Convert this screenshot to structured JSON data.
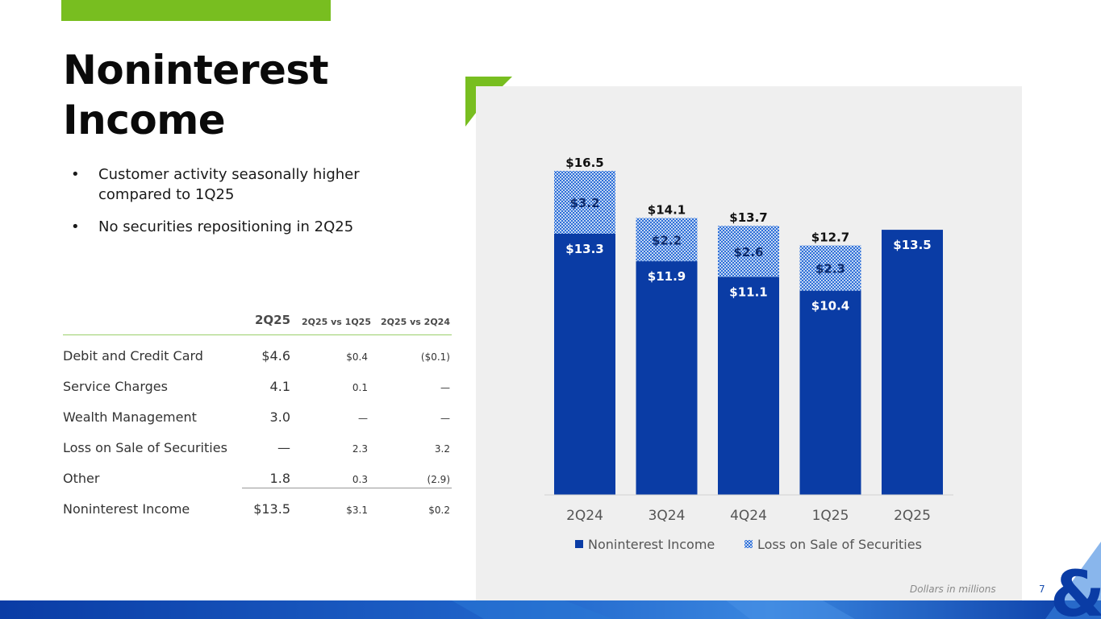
{
  "page": {
    "title": "Noninterest Income",
    "bullets": [
      "Customer activity seasonally higher compared to 1Q25",
      "No securities repositioning in 2Q25"
    ],
    "bullet_glyph": "•",
    "footnote": "Dollars in millions",
    "page_number": "7",
    "colors": {
      "accent_green": "#78be20",
      "navy": "#0a3ca5",
      "bar_blue": "#0a3ca5"
    },
    "logo_icon": "ampersand-logo-icon"
  },
  "table": {
    "headers": [
      "2Q25",
      "2Q25 vs 1Q25",
      "2Q25 vs 2Q24"
    ],
    "rows": [
      {
        "label": "Debit and Credit Card",
        "q": "$4.6",
        "v1": "$0.4",
        "v2": "($0.1)"
      },
      {
        "label": "Service Charges",
        "q": "4.1",
        "v1": "0.1",
        "v2": "—"
      },
      {
        "label": "Wealth Management",
        "q": "3.0",
        "v1": "—",
        "v2": "—"
      },
      {
        "label": "Loss on Sale of Securities",
        "q": "—",
        "v1": "2.3",
        "v2": "3.2"
      },
      {
        "label": "Other",
        "q": "1.8",
        "v1": "0.3",
        "v2": "(2.9)"
      },
      {
        "label": "Noninterest Income",
        "q": "$13.5",
        "v1": "$3.1",
        "v2": "$0.2"
      }
    ]
  },
  "chart_data": {
    "type": "bar",
    "stacked": true,
    "categories": [
      "2Q24",
      "3Q24",
      "4Q24",
      "1Q25",
      "2Q25"
    ],
    "series": [
      {
        "name": "Noninterest Income",
        "values": [
          13.3,
          11.9,
          11.1,
          10.4,
          13.5
        ],
        "labels": [
          "$13.3",
          "$11.9",
          "$11.1",
          "$10.4",
          "$13.5"
        ],
        "color": "#0a3ca5",
        "pattern": "solid"
      },
      {
        "name": "Loss on Sale of Securities",
        "values": [
          3.2,
          2.2,
          2.6,
          2.3,
          0
        ],
        "labels": [
          "$3.2",
          "$2.2",
          "$2.6",
          "$2.3",
          ""
        ],
        "color": "#2e6fd8",
        "pattern": "checker"
      }
    ],
    "totals": [
      16.5,
      14.1,
      13.7,
      12.7,
      null
    ],
    "total_labels": [
      "$16.5",
      "$14.1",
      "$13.7",
      "$12.7",
      ""
    ],
    "ylim": [
      0,
      16.5
    ],
    "legend": "bottom",
    "title": "",
    "xlabel": "",
    "ylabel": ""
  }
}
